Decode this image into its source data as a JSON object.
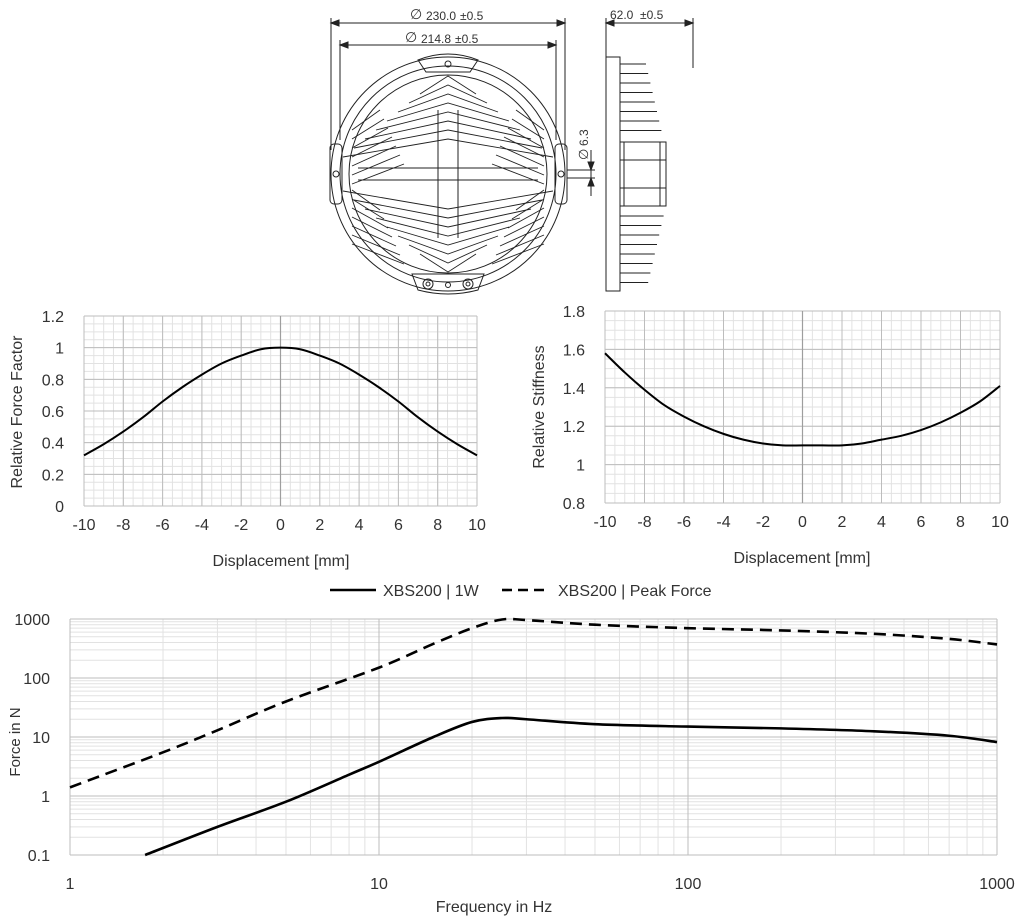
{
  "colors": {
    "ink": "#000000",
    "text": "#333333",
    "grid_major": "#bdbdbd",
    "grid_minor": "#e2e2e2",
    "axis": "#9e9e9e",
    "drawing": "#222222"
  },
  "drawing": {
    "dims": {
      "outer_diameter": "230.0",
      "outer_tolerance": "±0.5",
      "inner_diameter": "214.8",
      "inner_tolerance": "±0.5",
      "hole_diameter": "6.3",
      "depth": "62.0",
      "depth_tolerance": "±0.5"
    },
    "symbol": "∅"
  },
  "chart_data": [
    {
      "type": "line",
      "xlabel": "Displacement [mm]",
      "ylabel": "Relative Force Factor",
      "xlim": [
        -10,
        10
      ],
      "ylim": [
        0,
        1.2
      ],
      "xticks": [
        "-10",
        "-8",
        "-6",
        "-4",
        "-2",
        "0",
        "2",
        "4",
        "6",
        "8",
        "10"
      ],
      "yticks": [
        "0",
        "0.2",
        "0.4",
        "0.6",
        "0.8",
        "1",
        "1.2"
      ],
      "grid": true,
      "series": [
        {
          "x": [
            -10,
            -9,
            -8,
            -7,
            -6,
            -5,
            -4,
            -3,
            -2,
            -1,
            0,
            1,
            2,
            3,
            4,
            5,
            6,
            7,
            8,
            9,
            10
          ],
          "values": [
            0.32,
            0.39,
            0.47,
            0.56,
            0.66,
            0.75,
            0.83,
            0.9,
            0.95,
            0.99,
            1.0,
            0.99,
            0.95,
            0.9,
            0.83,
            0.75,
            0.66,
            0.56,
            0.47,
            0.39,
            0.32
          ]
        }
      ]
    },
    {
      "type": "line",
      "xlabel": "Displacement [mm]",
      "ylabel": "Relative Stiffness",
      "xlim": [
        -10,
        10
      ],
      "ylim": [
        0.8,
        1.8
      ],
      "xticks": [
        "-10",
        "-8",
        "-6",
        "-4",
        "-2",
        "0",
        "2",
        "4",
        "6",
        "8",
        "10"
      ],
      "yticks": [
        "0.8",
        "1",
        "1.2",
        "1.4",
        "1.6",
        "1.8"
      ],
      "grid": true,
      "series": [
        {
          "x": [
            -10,
            -9,
            -8,
            -7,
            -6,
            -5,
            -4,
            -3,
            -2,
            -1,
            0,
            1,
            2,
            3,
            4,
            5,
            6,
            7,
            8,
            9,
            10
          ],
          "values": [
            1.58,
            1.48,
            1.39,
            1.31,
            1.25,
            1.2,
            1.16,
            1.13,
            1.11,
            1.1,
            1.1,
            1.1,
            1.1,
            1.11,
            1.13,
            1.15,
            1.18,
            1.22,
            1.27,
            1.33,
            1.41
          ]
        }
      ]
    },
    {
      "type": "line",
      "xscale": "log",
      "yscale": "log",
      "xlabel": "Frequency in Hz",
      "ylabel": "Force in N",
      "xlim": [
        1,
        1000
      ],
      "ylim": [
        0.1,
        1000
      ],
      "xticks": [
        "1",
        "10",
        "100",
        "1000"
      ],
      "yticks": [
        "0.1",
        "1",
        "10",
        "100",
        "1000"
      ],
      "grid": true,
      "legend": "top",
      "series": [
        {
          "name": "XBS200 | 1W",
          "style": "solid",
          "x": [
            1.75,
            3,
            5,
            8,
            10,
            15,
            20,
            25,
            30,
            50,
            100,
            200,
            400,
            700,
            1000
          ],
          "values": [
            0.1,
            0.3,
            0.8,
            2.3,
            3.8,
            10,
            18,
            21,
            20,
            16.5,
            15,
            14,
            12.5,
            10.5,
            8.2
          ]
        },
        {
          "name": "XBS200 | Peak Force",
          "style": "dashed",
          "x": [
            1,
            2,
            3,
            5,
            10,
            15,
            20,
            25,
            30,
            50,
            100,
            200,
            400,
            700,
            1000
          ],
          "values": [
            1.4,
            5.5,
            13,
            40,
            150,
            380,
            700,
            980,
            960,
            800,
            700,
            640,
            560,
            460,
            370
          ]
        }
      ]
    }
  ]
}
